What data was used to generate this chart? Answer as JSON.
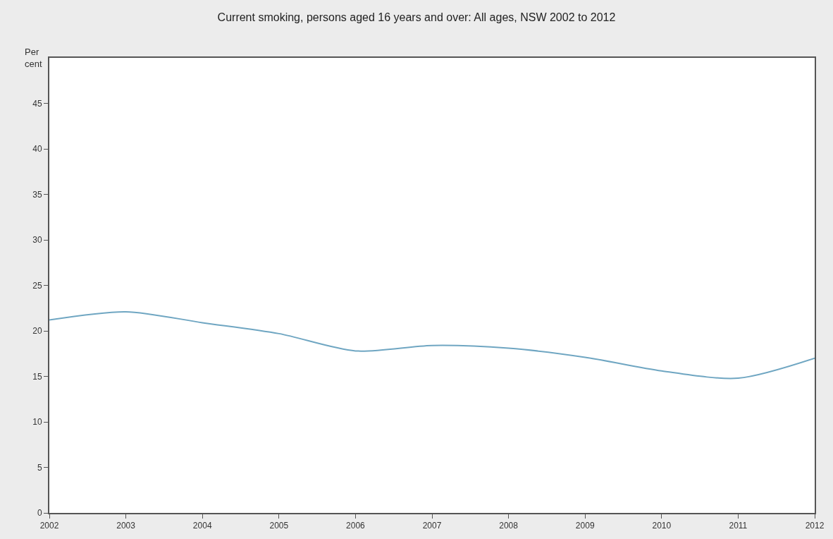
{
  "chart_data": {
    "type": "line",
    "title": "Current smoking, persons aged 16 years and over: All ages, NSW 2002 to 2012",
    "ylabel": "Per\ncent",
    "x": [
      2002,
      2003,
      2004,
      2005,
      2006,
      2007,
      2008,
      2009,
      2010,
      2011,
      2012
    ],
    "series": [
      {
        "color": "#6fa6c2",
        "values": [
          21.2,
          22.1,
          20.9,
          19.7,
          17.8,
          18.4,
          18.1,
          17.1,
          15.6,
          14.8,
          17.0
        ]
      }
    ],
    "xlim": [
      2002,
      2012
    ],
    "xticks": [
      2002,
      2003,
      2004,
      2005,
      2006,
      2007,
      2008,
      2009,
      2010,
      2011,
      2012
    ],
    "ylim": [
      0,
      50
    ],
    "yticks": [
      0,
      5,
      10,
      15,
      20,
      25,
      30,
      35,
      40,
      45
    ],
    "marker": "none",
    "line_style": "solid"
  }
}
